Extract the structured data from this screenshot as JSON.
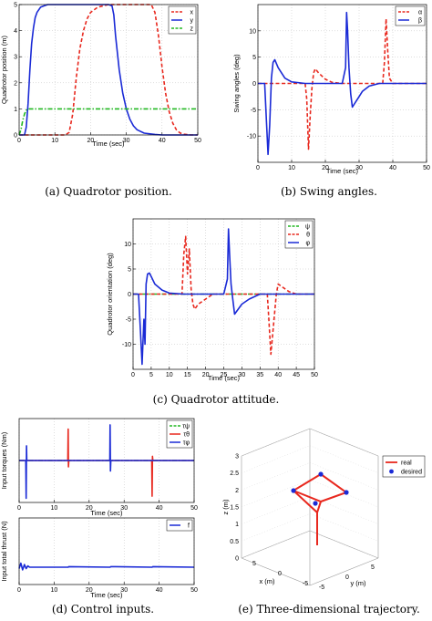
{
  "chart_data": [
    {
      "type": "line",
      "caption": "(a) Quadrotor position.",
      "xlabel": "Time (sec)",
      "ylabel": "Quadrotor position (m)",
      "xlim": [
        0,
        50
      ],
      "ylim": [
        0,
        5
      ],
      "xticks": [
        0,
        10,
        20,
        30,
        40,
        50
      ],
      "yticks": [
        0,
        1,
        2,
        3,
        4,
        5
      ],
      "grid": true,
      "legend": "top-right",
      "series": [
        {
          "name": "x",
          "color": "#e8281e",
          "dash": "dashed",
          "x": [
            0,
            6,
            12,
            13,
            14,
            15,
            16,
            17,
            18,
            19,
            20,
            22,
            25,
            27,
            30,
            37,
            38,
            39,
            40,
            41,
            42,
            43,
            44,
            45,
            46,
            48,
            50
          ],
          "y": [
            0,
            0,
            0,
            0,
            0.1,
            0.8,
            2.2,
            3.3,
            4.0,
            4.45,
            4.7,
            4.9,
            5,
            5,
            5,
            5,
            4.7,
            3.8,
            2.6,
            1.6,
            0.9,
            0.45,
            0.2,
            0.08,
            0.03,
            0,
            0
          ]
        },
        {
          "name": "y",
          "color": "#1a2ad6",
          "dash": "solid",
          "x": [
            0,
            1.5,
            2,
            2.5,
            3,
            3.5,
            4,
            4.5,
            5,
            6,
            7,
            8,
            10,
            15,
            20,
            25,
            26,
            26.5,
            27,
            28,
            29,
            30,
            31,
            32,
            33,
            35,
            38,
            40,
            45,
            50
          ],
          "y": [
            0,
            0,
            0.3,
            1.2,
            2.5,
            3.5,
            4.1,
            4.5,
            4.7,
            4.9,
            4.95,
            5,
            5,
            5,
            5,
            5,
            4.95,
            4.6,
            3.8,
            2.5,
            1.6,
            1.0,
            0.6,
            0.35,
            0.2,
            0.07,
            0.02,
            0,
            0,
            0
          ]
        },
        {
          "name": "z",
          "color": "#22b822",
          "dash": "dashdot",
          "x": [
            0,
            0.5,
            1,
            1.5,
            2,
            2.5,
            3,
            4,
            10,
            20,
            30,
            40,
            50
          ],
          "y": [
            0,
            0.2,
            0.55,
            0.8,
            0.95,
            1.0,
            1.0,
            1.0,
            1.0,
            1.0,
            1.0,
            1.0,
            1.0
          ]
        }
      ]
    },
    {
      "type": "line",
      "caption": "(b) Swing angles.",
      "xlabel": "Time (sec)",
      "ylabel": "Swing angles (deg)",
      "xlim": [
        0,
        50
      ],
      "ylim": [
        -15,
        15
      ],
      "xticks": [
        0,
        10,
        20,
        30,
        40,
        50
      ],
      "yticks": [
        -10,
        -5,
        0,
        5,
        10
      ],
      "grid": true,
      "legend": "top-right",
      "series": [
        {
          "name": "α",
          "color": "#e8281e",
          "dash": "dashed",
          "x": [
            0,
            14,
            14.5,
            15,
            15.5,
            16,
            16.5,
            17,
            18,
            20,
            22,
            25,
            37,
            37.5,
            38,
            38.5,
            39,
            40,
            42,
            45,
            50
          ],
          "y": [
            0,
            0,
            -3,
            -12.5,
            -6,
            -1,
            2,
            2.8,
            2,
            0.8,
            0.2,
            0,
            0,
            4,
            12.3,
            6,
            1,
            0,
            0,
            0,
            0
          ]
        },
        {
          "name": "β",
          "color": "#1a2ad6",
          "dash": "solid",
          "x": [
            0,
            2,
            2.5,
            3,
            3.5,
            4,
            4.5,
            5,
            6,
            8,
            10,
            14,
            25,
            26,
            26.3,
            26.6,
            27,
            27.5,
            28,
            29,
            30,
            31,
            33,
            36,
            50
          ],
          "y": [
            0,
            0,
            -7,
            -13.5,
            -8,
            1,
            4,
            4.5,
            3,
            1,
            0.3,
            0,
            0,
            3,
            13.5,
            10,
            3,
            -2,
            -4.5,
            -3.5,
            -2.5,
            -1.5,
            -0.5,
            0,
            0
          ]
        }
      ]
    },
    {
      "type": "line",
      "caption": "(c) Quadrotor attitude.",
      "xlabel": "Time (sec)",
      "ylabel": "Quadrotor orientation (deg)",
      "xlim": [
        0,
        50
      ],
      "ylim": [
        -15,
        15
      ],
      "xticks": [
        0,
        5,
        10,
        15,
        20,
        25,
        30,
        35,
        40,
        45,
        50
      ],
      "yticks": [
        -10,
        -5,
        0,
        5,
        10
      ],
      "grid": true,
      "legend": "top-right",
      "series": [
        {
          "name": "ψ",
          "color": "#22b822",
          "dash": "dashdot",
          "x": [
            0,
            50
          ],
          "y": [
            0,
            0
          ]
        },
        {
          "name": "θ",
          "color": "#e8281e",
          "dash": "dashed",
          "x": [
            0,
            13.5,
            14,
            14.5,
            15,
            15.5,
            16,
            16.5,
            17,
            18,
            20,
            22,
            25,
            37,
            37.5,
            38,
            38.5,
            39,
            39.5,
            40,
            41,
            43,
            45,
            50
          ],
          "y": [
            0,
            0,
            8,
            11.5,
            4,
            9,
            1,
            -2,
            -3,
            -2,
            -1,
            0,
            0,
            0,
            -6,
            -12,
            -8,
            -4,
            0,
            2,
            1.5,
            0.5,
            0,
            0
          ]
        },
        {
          "name": "φ",
          "color": "#1a2ad6",
          "dash": "solid",
          "x": [
            0,
            1.5,
            2,
            2.5,
            3,
            3.3,
            3.6,
            4,
            4.5,
            5,
            6,
            8,
            10,
            14,
            25,
            26,
            26.3,
            26.6,
            27,
            27.5,
            28,
            29,
            30,
            32,
            35,
            50
          ],
          "y": [
            0,
            0,
            -7,
            -14,
            -5,
            -10,
            2,
            4,
            4.2,
            3.5,
            2,
            0.8,
            0.2,
            0,
            0,
            3,
            13,
            8,
            2,
            -1,
            -4,
            -3,
            -2,
            -1,
            0,
            0
          ]
        }
      ]
    },
    {
      "type": "line",
      "caption_part": "top",
      "xlabel": "Time (sec)",
      "ylabel": "Input torques (Nm)",
      "xlim": [
        0,
        50
      ],
      "ylim": [
        -1,
        1
      ],
      "xticks": [
        0,
        10,
        20,
        30,
        40,
        50
      ],
      "grid": true,
      "legend": "top-right",
      "series": [
        {
          "name": "τψ",
          "color": "#22b822",
          "dash": "dashdot",
          "x": [
            0,
            50
          ],
          "y": [
            0,
            0
          ]
        },
        {
          "name": "τθ",
          "color": "#e8281e",
          "dash": "solid",
          "x": [
            0,
            13.9,
            14,
            14.1,
            14.2,
            37.9,
            38,
            38.1,
            38.2,
            50
          ],
          "y": [
            0,
            0,
            0.75,
            -0.15,
            0,
            0,
            -0.85,
            0.1,
            0,
            0
          ]
        },
        {
          "name": "τφ",
          "color": "#1a2ad6",
          "dash": "solid",
          "x": [
            0,
            1.9,
            2,
            2.1,
            2.2,
            25.9,
            26,
            26.1,
            26.2,
            50
          ],
          "y": [
            0,
            0,
            -0.9,
            0.35,
            0,
            0,
            0.85,
            -0.25,
            0,
            0
          ]
        }
      ]
    },
    {
      "type": "line",
      "caption_part": "bottom",
      "xlabel": "Time (sec)",
      "ylabel": "Input total thrust (N)",
      "xlim": [
        0,
        50
      ],
      "ylim": [
        0,
        50
      ],
      "xticks": [
        0,
        10,
        20,
        30,
        40,
        50
      ],
      "grid": true,
      "legend": "top-right",
      "series": [
        {
          "name": "f",
          "color": "#1a2ad6",
          "dash": "solid",
          "x": [
            0,
            0.5,
            1,
            1.5,
            2,
            2.5,
            3,
            4,
            14,
            14.2,
            26,
            26.2,
            38,
            38.2,
            50
          ],
          "y": [
            12,
            16,
            11,
            15,
            12,
            14,
            13,
            13,
            13,
            13.4,
            13,
            13.4,
            13,
            13.4,
            13
          ]
        }
      ]
    },
    {
      "type": "scatter",
      "caption": "(e) Three-dimensional trajectory.",
      "xlabel": "x (m)",
      "ylabel": "y (m)",
      "zlabel": "z (m)",
      "xticks": [
        5,
        0,
        -5
      ],
      "yticks": [
        -5,
        0,
        5
      ],
      "zticks": [
        0,
        0.5,
        1,
        1.5,
        2,
        2.5,
        3
      ],
      "grid": true,
      "legend": "top-right",
      "series": [
        {
          "name": "real",
          "color": "#e8281e",
          "dash": "solid"
        },
        {
          "name": "desired",
          "color": "#1a2ad6",
          "marker": "circle"
        }
      ]
    }
  ],
  "captions": {
    "a": "(a) Quadrotor position.",
    "b": "(b) Swing angles.",
    "c": "(c) Quadrotor attitude.",
    "d": "(d) Control inputs.",
    "e": "(e) Three-dimensional trajectory."
  }
}
